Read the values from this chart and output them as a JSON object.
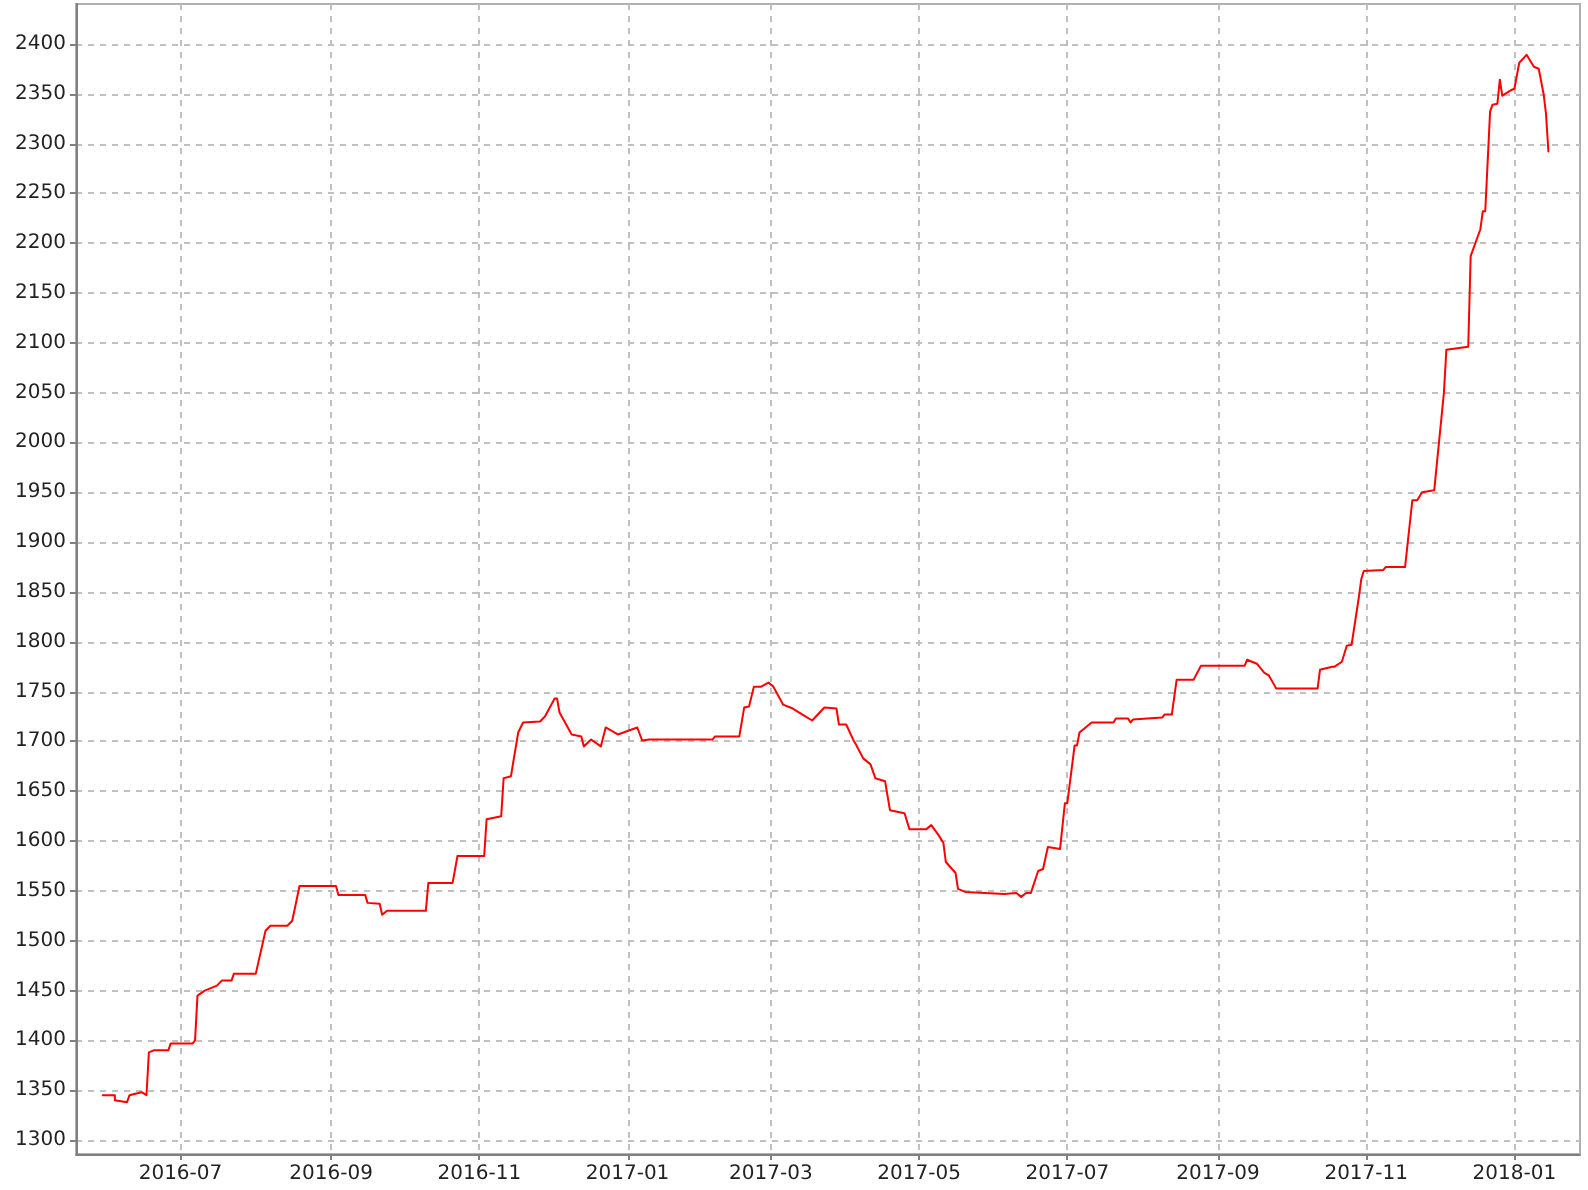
{
  "chart_data": {
    "type": "line",
    "x": [
      "2016-05-30",
      "2016-06-04",
      "2016-06-04",
      "2016-06-09",
      "2016-06-10",
      "2016-06-15",
      "2016-06-17",
      "2016-06-18",
      "2016-06-20",
      "2016-06-26",
      "2016-06-27",
      "2016-07-06",
      "2016-07-07",
      "2016-07-08",
      "2016-07-11",
      "2016-07-16",
      "2016-07-18",
      "2016-07-22",
      "2016-07-23",
      "2016-08-01",
      "2016-08-05",
      "2016-08-07",
      "2016-08-14",
      "2016-08-16",
      "2016-08-19",
      "2016-09-03",
      "2016-09-04",
      "2016-09-15",
      "2016-09-16",
      "2016-09-21",
      "2016-09-22",
      "2016-09-24",
      "2016-10-10",
      "2016-10-11",
      "2016-10-21",
      "2016-10-23",
      "2016-11-03",
      "2016-11-04",
      "2016-11-10",
      "2016-11-11",
      "2016-11-14",
      "2016-11-17",
      "2016-11-19",
      "2016-11-26",
      "2016-11-28",
      "2016-12-02",
      "2016-12-03",
      "2016-12-04",
      "2016-12-09",
      "2016-12-13",
      "2016-12-14",
      "2016-12-17",
      "2016-12-21",
      "2016-12-23",
      "2016-12-28",
      "2017-01-05",
      "2017-01-07",
      "2017-01-10",
      "2017-02-05",
      "2017-02-06",
      "2017-02-16",
      "2017-02-18",
      "2017-02-20",
      "2017-02-22",
      "2017-02-25",
      "2017-02-28",
      "2017-03-02",
      "2017-03-06",
      "2017-03-10",
      "2017-03-14",
      "2017-03-18",
      "2017-03-23",
      "2017-03-28",
      "2017-03-29",
      "2017-04-01",
      "2017-04-04",
      "2017-04-05",
      "2017-04-08",
      "2017-04-11",
      "2017-04-13",
      "2017-04-17",
      "2017-04-19",
      "2017-04-25",
      "2017-04-27",
      "2017-05-04",
      "2017-05-06",
      "2017-05-09",
      "2017-05-11",
      "2017-05-12",
      "2017-05-16",
      "2017-05-17",
      "2017-05-20",
      "2017-06-05",
      "2017-06-10",
      "2017-06-12",
      "2017-06-14",
      "2017-06-16",
      "2017-06-19",
      "2017-06-21",
      "2017-06-23",
      "2017-06-28",
      "2017-06-30",
      "2017-07-01",
      "2017-07-04",
      "2017-07-05",
      "2017-07-06",
      "2017-07-11",
      "2017-07-20",
      "2017-07-21",
      "2017-07-26",
      "2017-07-27",
      "2017-07-28",
      "2017-08-09",
      "2017-08-10",
      "2017-08-13",
      "2017-08-15",
      "2017-08-22",
      "2017-08-25",
      "2017-09-12",
      "2017-09-13",
      "2017-09-17",
      "2017-09-20",
      "2017-09-22",
      "2017-09-25",
      "2017-10-12",
      "2017-10-13",
      "2017-10-18",
      "2017-10-19",
      "2017-10-22",
      "2017-10-24",
      "2017-10-26",
      "2017-10-29",
      "2017-10-30",
      "2017-10-31",
      "2017-11-08",
      "2017-11-09",
      "2017-11-17",
      "2017-11-20",
      "2017-11-22",
      "2017-11-24",
      "2017-11-29",
      "2017-12-03",
      "2017-12-04",
      "2017-12-13",
      "2017-12-14",
      "2017-12-18",
      "2017-12-19",
      "2017-12-20",
      "2017-12-22",
      "2017-12-23",
      "2017-12-25",
      "2017-12-26",
      "2017-12-27",
      "2017-12-31",
      "2018-01-01",
      "2018-01-03",
      "2018-01-06",
      "2018-01-09",
      "2018-01-11",
      "2018-01-13",
      "2018-01-14",
      "2018-01-15"
    ],
    "series": [
      {
        "color": "#ff0000",
        "values": [
          1345,
          1345,
          1340,
          1338,
          1345,
          1348,
          1345,
          1388,
          1390,
          1390,
          1397,
          1397,
          1400,
          1445,
          1450,
          1455,
          1460,
          1460,
          1467,
          1467,
          1510,
          1515,
          1515,
          1520,
          1555,
          1555,
          1546,
          1546,
          1538,
          1537,
          1526,
          1530,
          1530,
          1558,
          1558,
          1585,
          1585,
          1622,
          1625,
          1663,
          1665,
          1709,
          1719,
          1720,
          1725,
          1743,
          1743,
          1729,
          1707,
          1705,
          1695,
          1702,
          1695,
          1714,
          1707,
          1714,
          1701,
          1702,
          1702,
          1705,
          1705,
          1734,
          1735,
          1755,
          1755,
          1759,
          1755,
          1737,
          1733,
          1727,
          1721,
          1734,
          1733,
          1717,
          1717,
          1701,
          1697,
          1683,
          1677,
          1663,
          1660,
          1631,
          1628,
          1612,
          1612,
          1616,
          1606,
          1598,
          1579,
          1568,
          1552,
          1549,
          1547,
          1548,
          1544,
          1548,
          1548,
          1570,
          1572,
          1594,
          1592,
          1638,
          1638,
          1696,
          1696,
          1709,
          1719,
          1719,
          1723,
          1723,
          1719,
          1722,
          1724,
          1727,
          1727,
          1762,
          1762,
          1776,
          1776,
          1782,
          1778,
          1769,
          1766,
          1753,
          1753,
          1772,
          1775,
          1775,
          1780,
          1796,
          1797,
          1845,
          1863,
          1871,
          1872,
          1875,
          1875,
          1942,
          1942,
          1950,
          1952,
          2050,
          2093,
          2096,
          2187,
          2214,
          2232,
          2232,
          2332,
          2339,
          2340,
          2364,
          2348,
          2354,
          2355,
          2381,
          2389,
          2377,
          2375,
          2350,
          2330,
          2292
        ]
      }
    ],
    "xlim": [
      "2016-05-19",
      "2018-01-28"
    ],
    "xticks": [
      {
        "value": "2016-07-01",
        "label": "2016-07"
      },
      {
        "value": "2016-09-01",
        "label": "2016-09"
      },
      {
        "value": "2016-11-01",
        "label": "2016-11"
      },
      {
        "value": "2017-01-01",
        "label": "2017-01"
      },
      {
        "value": "2017-03-01",
        "label": "2017-03"
      },
      {
        "value": "2017-05-01",
        "label": "2017-05"
      },
      {
        "value": "2017-07-01",
        "label": "2017-07"
      },
      {
        "value": "2017-09-01",
        "label": "2017-09"
      },
      {
        "value": "2017-11-01",
        "label": "2017-11"
      },
      {
        "value": "2018-01-01",
        "label": "2018-01"
      }
    ],
    "ylim": [
      1286,
      2440
    ],
    "yticks": [
      1300,
      1350,
      1400,
      1450,
      1500,
      1550,
      1600,
      1650,
      1700,
      1750,
      1800,
      1850,
      1900,
      1950,
      2000,
      2050,
      2100,
      2150,
      2200,
      2250,
      2300,
      2350,
      2400
    ],
    "grid": true,
    "marker": "none",
    "line_style": "solid"
  }
}
